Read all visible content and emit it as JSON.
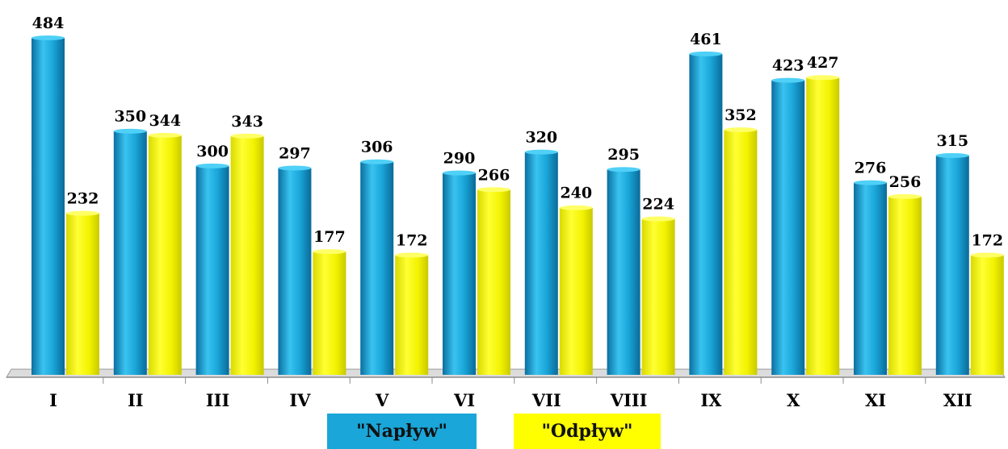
{
  "chart_data": {
    "type": "bar",
    "title": "",
    "xlabel": "",
    "ylabel": "",
    "ylim": [
      0,
      484
    ],
    "grid": false,
    "legend_position": "bottom",
    "categories": [
      "I",
      "II",
      "III",
      "IV",
      "V",
      "VI",
      "VII",
      "VIII",
      "IX",
      "X",
      "XI",
      "XII"
    ],
    "series": [
      {
        "name": "\"Napływ\"",
        "color": "#1aa6d9",
        "values": [
          484,
          350,
          300,
          297,
          306,
          290,
          320,
          295,
          461,
          423,
          276,
          315
        ]
      },
      {
        "name": "\"Odpływ\"",
        "color": "#ffff00",
        "values": [
          232,
          344,
          343,
          177,
          172,
          266,
          240,
          224,
          352,
          427,
          256,
          172
        ]
      }
    ]
  }
}
